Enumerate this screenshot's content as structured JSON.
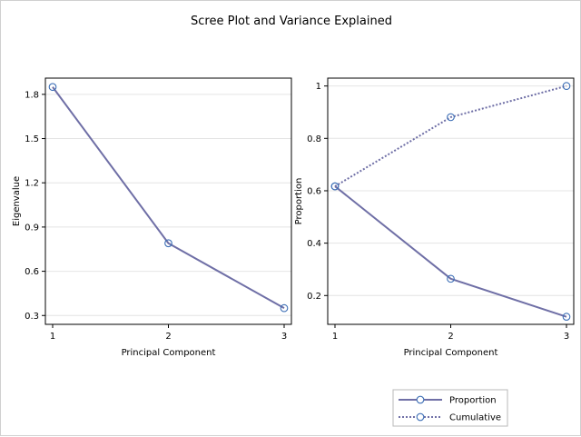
{
  "chart_data": {
    "title": "Scree Plot and Variance Explained",
    "panels": [
      {
        "type": "line",
        "xlabel": "Principal Component",
        "ylabel": "Eigenvalue",
        "x": [
          1,
          2,
          3
        ],
        "xticks": [
          "1",
          "2",
          "3"
        ],
        "ylim": [
          0.24,
          1.91
        ],
        "yticks": [
          0.3,
          0.6,
          0.9,
          1.2,
          1.5,
          1.8
        ],
        "ytick_labels": [
          "0.3",
          "0.6",
          "0.9",
          "1.2",
          "1.5",
          "1.8"
        ],
        "grid": true,
        "series": [
          {
            "values": [
              1.85,
              0.79,
              0.35
            ],
            "style": "solid",
            "color": "#6f6fa6",
            "marker": "open-circle",
            "marker_color": "#3d6fb6"
          }
        ]
      },
      {
        "type": "line",
        "xlabel": "Principal Component",
        "ylabel": "Proportion",
        "x": [
          1,
          2,
          3
        ],
        "xticks": [
          "1",
          "2",
          "3"
        ],
        "ylim": [
          0.09,
          1.03
        ],
        "yticks": [
          0.2,
          0.4,
          0.6,
          0.8,
          1
        ],
        "ytick_labels": [
          "0.2",
          "0.4",
          "0.6",
          "0.8",
          "1"
        ],
        "grid": true,
        "series": [
          {
            "name": "Proportion",
            "values": [
              0.617,
              0.264,
              0.119
            ],
            "style": "solid",
            "color": "#6f6fa6",
            "marker": "open-circle",
            "marker_color": "#3d6fb6"
          },
          {
            "name": "Cumulative",
            "values": [
              0.617,
              0.881,
              1.0
            ],
            "style": "dotted",
            "color": "#6f6fa6",
            "marker": "open-circle",
            "marker_color": "#3d6fb6"
          }
        ]
      }
    ],
    "legend": {
      "placement": "bottom-right",
      "entries": [
        "Proportion",
        "Cumulative"
      ]
    }
  }
}
